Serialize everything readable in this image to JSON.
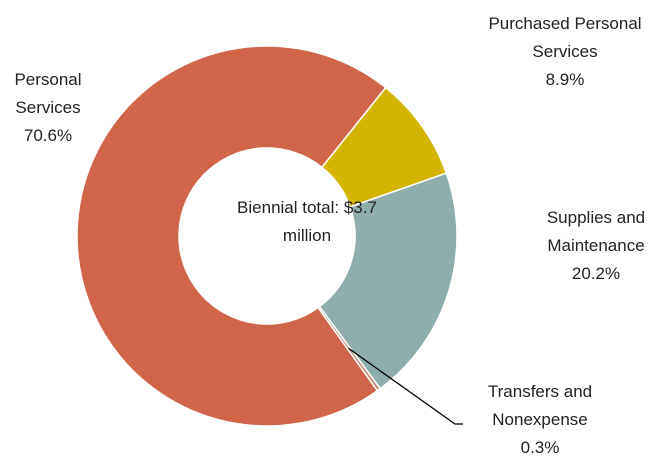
{
  "chart_data": {
    "type": "donut",
    "annotation": "Biennial total: $3.7 million",
    "categories": [
      "Personal Services",
      "Purchased Personal Services",
      "Supplies and Maintenance",
      "Transfers and Nonexpense"
    ],
    "values": [
      70.6,
      8.9,
      20.2,
      0.3
    ],
    "value_labels": [
      "70.6%",
      "8.9%",
      "20.2%",
      "0.3%"
    ],
    "colors": [
      "#d0654a",
      "#d4b400",
      "#8fadac",
      "#c98f78"
    ]
  }
}
